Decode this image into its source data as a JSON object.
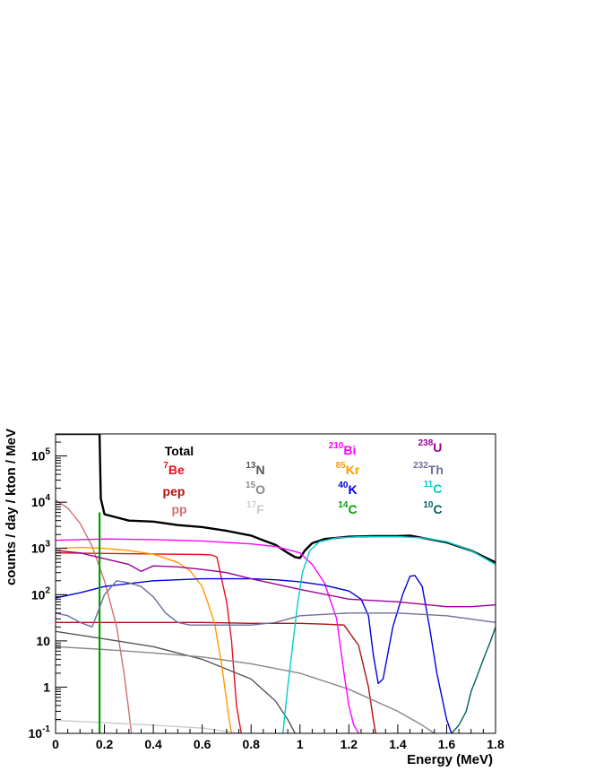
{
  "chart_data": {
    "type": "line",
    "title": "",
    "xlabel": "Energy (MeV)",
    "ylabel": "counts / day / kton / MeV",
    "xlim": [
      0,
      1.8
    ],
    "ylim": [
      0.1,
      300000
    ],
    "yscale": "log",
    "grid": false,
    "legend_placement": "top",
    "x_ticks": [
      0,
      0.2,
      0.4,
      0.6,
      0.8,
      1,
      1.2,
      1.4,
      1.6,
      1.8
    ],
    "x_tick_labels": [
      "0",
      "0.2",
      "0.4",
      "0.6",
      "0.8",
      "1",
      "1.2",
      "1.4",
      "1.6",
      "1.8"
    ],
    "y_ticks": [
      0.1,
      1,
      10,
      100,
      1000,
      10000,
      100000
    ],
    "y_tick_labels": [
      {
        "base": "10",
        "sup": "-1"
      },
      {
        "base": "1",
        "sup": ""
      },
      {
        "base": "10",
        "sup": ""
      },
      {
        "base": "10",
        "sup": "2"
      },
      {
        "base": "10",
        "sup": "3"
      },
      {
        "base": "10",
        "sup": "4"
      },
      {
        "base": "10",
        "sup": "5"
      }
    ],
    "series": [
      {
        "name": "Total",
        "sup": "",
        "color": "#000000",
        "width": 2.4,
        "x": [
          0,
          0.15,
          0.17,
          0.18,
          0.185,
          0.2,
          0.3,
          0.4,
          0.5,
          0.6,
          0.7,
          0.8,
          0.85,
          0.9,
          0.95,
          0.98,
          1.0,
          1.02,
          1.05,
          1.1,
          1.2,
          1.3,
          1.4,
          1.45,
          1.5,
          1.6,
          1.7,
          1.8
        ],
        "y": [
          300000,
          300000,
          300000,
          300000,
          12000,
          5500,
          4000,
          3800,
          3200,
          2900,
          2400,
          1900,
          1500,
          1200,
          800,
          650,
          620,
          900,
          1300,
          1600,
          1800,
          1850,
          1850,
          1900,
          1700,
          1350,
          900,
          500
        ]
      },
      {
        "name": "Be",
        "sup": "7",
        "color": "#e8101a",
        "width": 1.4,
        "x": [
          0,
          0.2,
          0.4,
          0.6,
          0.64,
          0.66,
          0.7,
          0.72,
          0.74,
          0.76
        ],
        "y": [
          800,
          780,
          760,
          740,
          720,
          650,
          70,
          10,
          0.4,
          0.1
        ]
      },
      {
        "name": "pep",
        "sup": "",
        "color": "#b01010",
        "width": 1.4,
        "x": [
          0,
          0.2,
          0.4,
          0.6,
          0.8,
          1.0,
          1.1,
          1.18,
          1.24,
          1.28,
          1.3,
          1.31
        ],
        "y": [
          25,
          25,
          25,
          25,
          24,
          24,
          23,
          22,
          8,
          1,
          0.2,
          0.1
        ]
      },
      {
        "name": "pp",
        "sup": "",
        "color": "#d07070",
        "width": 1.4,
        "x": [
          0,
          0.05,
          0.1,
          0.15,
          0.2,
          0.25,
          0.28,
          0.3,
          0.31
        ],
        "y": [
          11000,
          7500,
          3500,
          1100,
          200,
          20,
          2,
          0.3,
          0.1
        ]
      },
      {
        "name": "N",
        "sup": "13",
        "color": "#555555",
        "width": 1.4,
        "x": [
          0,
          0.2,
          0.4,
          0.6,
          0.8,
          0.9,
          0.95,
          0.98
        ],
        "y": [
          16,
          11,
          7.5,
          4,
          1.5,
          0.5,
          0.2,
          0.1
        ]
      },
      {
        "name": "O",
        "sup": "15",
        "color": "#888888",
        "width": 1.4,
        "x": [
          0,
          0.2,
          0.4,
          0.6,
          0.8,
          1.0,
          1.2,
          1.4,
          1.5,
          1.55
        ],
        "y": [
          7.5,
          6.5,
          5.5,
          4.5,
          3.2,
          2,
          0.9,
          0.3,
          0.15,
          0.1
        ]
      },
      {
        "name": "F",
        "sup": "17",
        "color": "#cccccc",
        "width": 1.4,
        "x": [
          0,
          0.2,
          0.4,
          0.6,
          0.7,
          0.75
        ],
        "y": [
          0.19,
          0.17,
          0.15,
          0.13,
          0.11,
          0.1
        ]
      },
      {
        "name": "Bi",
        "sup": "210",
        "color": "#ff00ff",
        "width": 1.4,
        "x": [
          0,
          0.2,
          0.4,
          0.6,
          0.8,
          0.9,
          1.0,
          1.05,
          1.1,
          1.15,
          1.18,
          1.2,
          1.22,
          1.24
        ],
        "y": [
          1500,
          1600,
          1550,
          1450,
          1250,
          1100,
          800,
          450,
          180,
          30,
          2,
          0.4,
          0.15,
          0.1
        ]
      },
      {
        "name": "Kr",
        "sup": "85",
        "color": "#ff9900",
        "width": 1.4,
        "x": [
          0,
          0.1,
          0.2,
          0.3,
          0.4,
          0.5,
          0.55,
          0.6,
          0.65,
          0.68,
          0.7,
          0.71,
          0.72
        ],
        "y": [
          1000,
          1050,
          1000,
          900,
          750,
          500,
          330,
          150,
          25,
          3,
          0.5,
          0.2,
          0.1
        ]
      },
      {
        "name": "K",
        "sup": "40",
        "color": "#0000e0",
        "width": 1.4,
        "x": [
          0,
          0.1,
          0.2,
          0.4,
          0.6,
          0.8,
          0.9,
          1.0,
          1.1,
          1.2,
          1.25,
          1.28,
          1.3,
          1.32,
          1.34,
          1.38,
          1.42,
          1.45,
          1.47,
          1.5,
          1.53,
          1.56,
          1.6,
          1.62
        ],
        "y": [
          85,
          110,
          150,
          200,
          220,
          220,
          210,
          190,
          160,
          120,
          80,
          35,
          5,
          1.2,
          1.5,
          20,
          100,
          250,
          260,
          150,
          20,
          2,
          0.2,
          0.1
        ]
      },
      {
        "name": "C",
        "sup": "14",
        "color": "#00a000",
        "width": 2.2,
        "x": [
          0.18,
          0.18
        ],
        "y": [
          0.1,
          6000
        ]
      },
      {
        "name": "U",
        "sup": "238",
        "color": "#990099",
        "width": 1.4,
        "x": [
          0,
          0.1,
          0.2,
          0.3,
          0.35,
          0.4,
          0.5,
          0.6,
          0.7,
          0.8,
          1.0,
          1.2,
          1.4,
          1.6,
          1.7,
          1.8
        ],
        "y": [
          900,
          800,
          600,
          450,
          320,
          420,
          400,
          350,
          300,
          220,
          130,
          80,
          70,
          55,
          55,
          60
        ]
      },
      {
        "name": "Th",
        "sup": "232",
        "color": "#6e6e9e",
        "width": 1.4,
        "x": [
          0,
          0.05,
          0.1,
          0.15,
          0.2,
          0.25,
          0.3,
          0.35,
          0.4,
          0.45,
          0.5,
          0.55,
          0.6,
          0.7,
          0.8,
          0.9,
          1.0,
          1.2,
          1.4,
          1.6,
          1.8
        ],
        "y": [
          40,
          35,
          25,
          20,
          100,
          200,
          180,
          150,
          90,
          40,
          25,
          22,
          22,
          22,
          22,
          25,
          35,
          40,
          40,
          35,
          25
        ]
      },
      {
        "name": "C",
        "sup": "11",
        "color": "#00cccc",
        "width": 1.4,
        "x": [
          0.93,
          0.95,
          0.97,
          0.99,
          1.01,
          1.04,
          1.08,
          1.15,
          1.25,
          1.4,
          1.5,
          1.6,
          1.7,
          1.8
        ],
        "y": [
          0.1,
          1,
          8,
          60,
          300,
          900,
          1400,
          1700,
          1800,
          1800,
          1700,
          1400,
          900,
          450
        ]
      },
      {
        "name": "C",
        "sup": "10",
        "color": "#006060",
        "width": 1.4,
        "x": [
          1.62,
          1.65,
          1.68,
          1.7,
          1.72,
          1.75,
          1.78,
          1.8
        ],
        "y": [
          0.1,
          0.15,
          0.3,
          0.8,
          1.5,
          4,
          10,
          20
        ]
      }
    ]
  }
}
